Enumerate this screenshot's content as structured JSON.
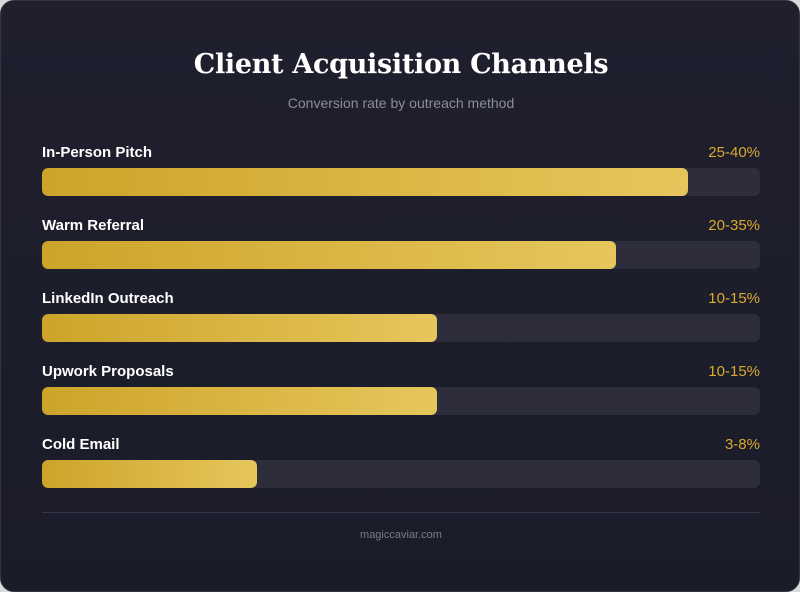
{
  "title": "Client Acquisition Channels",
  "subtitle": "Conversion rate by outreach method",
  "footer": "magiccaviar.com",
  "colors": {
    "background": "#1f1f2e",
    "track": "#2d2d3c",
    "bar_start": "#cda42a",
    "bar_end": "#e6c65c",
    "value_text": "#d9aa2e"
  },
  "chart_data": {
    "type": "bar",
    "orientation": "horizontal",
    "title": "Client Acquisition Channels",
    "subtitle": "Conversion rate by outreach method",
    "categories": [
      "In-Person Pitch",
      "Warm Referral",
      "LinkedIn Outreach",
      "Upwork Proposals",
      "Cold Email"
    ],
    "value_labels": [
      "25-40%",
      "20-35%",
      "10-15%",
      "10-15%",
      "3-8%"
    ],
    "fill_fraction": [
      0.9,
      0.8,
      0.55,
      0.55,
      0.3
    ]
  }
}
